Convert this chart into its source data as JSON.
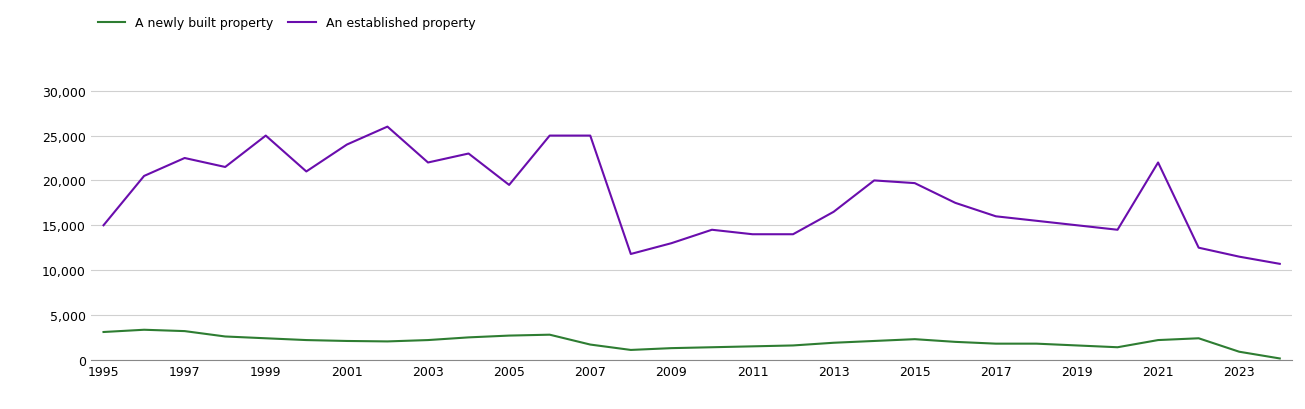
{
  "years": [
    1995,
    1996,
    1997,
    1998,
    1999,
    2000,
    2001,
    2002,
    2003,
    2004,
    2005,
    2006,
    2007,
    2008,
    2009,
    2010,
    2011,
    2012,
    2013,
    2014,
    2015,
    2016,
    2017,
    2018,
    2019,
    2020,
    2021,
    2022,
    2023,
    2024
  ],
  "new_homes": [
    3100,
    3350,
    3200,
    2600,
    2400,
    2200,
    2100,
    2050,
    2200,
    2500,
    2700,
    2800,
    1700,
    1100,
    1300,
    1400,
    1500,
    1600,
    1900,
    2100,
    2300,
    2000,
    1800,
    1800,
    1600,
    1400,
    2200,
    2400,
    900,
    150
  ],
  "established_homes": [
    15000,
    20500,
    22500,
    21500,
    25000,
    21000,
    24000,
    26000,
    22000,
    23000,
    19500,
    25000,
    25000,
    11800,
    13000,
    14500,
    14000,
    14000,
    16500,
    20000,
    19700,
    17500,
    16000,
    15500,
    15000,
    14500,
    22000,
    12500,
    11500,
    10700
  ],
  "new_color": "#2e7d32",
  "established_color": "#6a0dad",
  "legend_new": "A newly built property",
  "legend_established": "An established property",
  "ylim": [
    0,
    32000
  ],
  "yticks": [
    0,
    5000,
    10000,
    15000,
    20000,
    25000,
    30000
  ],
  "background_color": "#ffffff",
  "grid_color": "#d0d0d0",
  "linewidth": 1.5,
  "tick_fontsize": 9,
  "legend_fontsize": 9
}
